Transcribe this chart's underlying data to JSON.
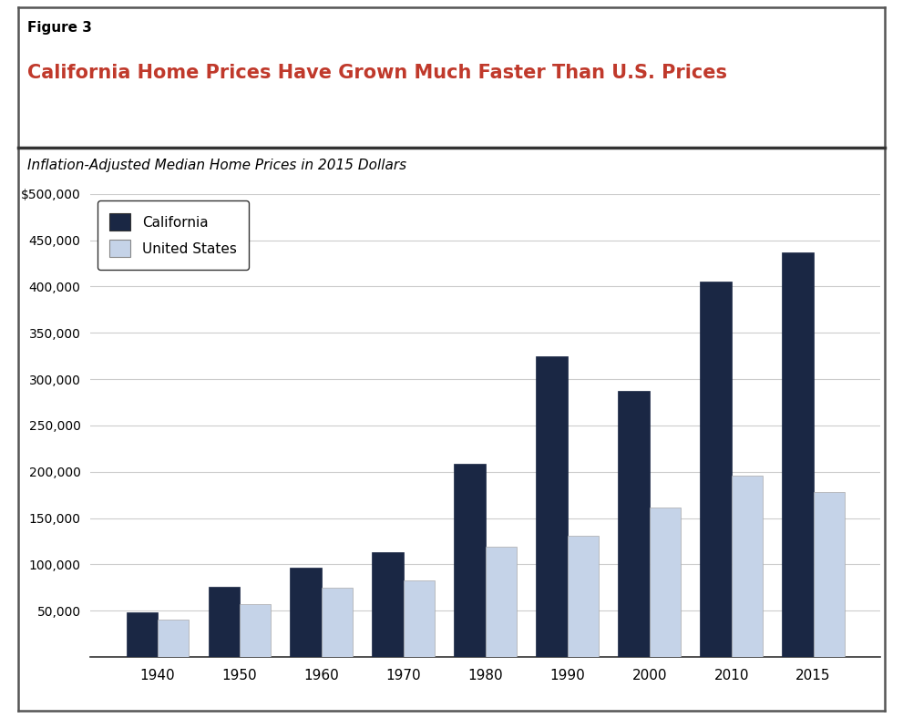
{
  "figure_label": "Figure 3",
  "title": "California Home Prices Have Grown Much Faster Than U.S. Prices",
  "subtitle": "Inflation-Adjusted Median Home Prices in 2015 Dollars",
  "years": [
    1940,
    1950,
    1960,
    1970,
    1980,
    1990,
    2000,
    2010,
    2015
  ],
  "california": [
    48000,
    76000,
    96000,
    113000,
    209000,
    325000,
    287000,
    405000,
    437000
  ],
  "us": [
    40000,
    57000,
    75000,
    83000,
    119000,
    131000,
    161000,
    196000,
    178000
  ],
  "california_color": "#1a2744",
  "us_color": "#c5d3e8",
  "title_color": "#c0392b",
  "label_color": "#000000",
  "ylim": [
    0,
    500000
  ],
  "yticks": [
    0,
    50000,
    100000,
    150000,
    200000,
    250000,
    300000,
    350000,
    400000,
    450000,
    500000
  ],
  "bar_width": 0.38,
  "legend_labels": [
    "California",
    "United States"
  ],
  "grid_color": "#cccccc",
  "background_color": "#ffffff",
  "divider_color": "#333333",
  "border_color": "#555555"
}
